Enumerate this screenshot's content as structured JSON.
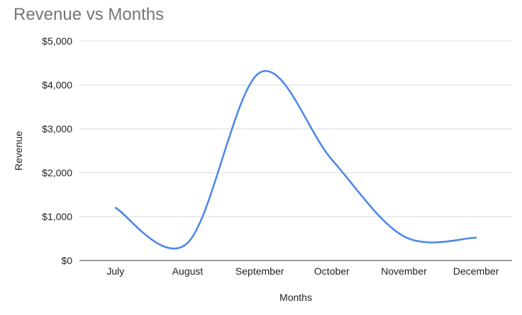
{
  "chart_data": {
    "type": "line",
    "title": "Revenue vs Months",
    "xlabel": "Months",
    "ylabel": "Revenue",
    "categories": [
      "July",
      "August",
      "September",
      "October",
      "November",
      "December"
    ],
    "series": [
      {
        "values": [
          1200,
          400,
          4280,
          2300,
          550,
          520
        ]
      }
    ],
    "ylim": [
      0,
      5000
    ],
    "yticks": [
      0,
      1000,
      2000,
      3000,
      4000,
      5000
    ],
    "ytick_labels": [
      "$0",
      "$1,000",
      "$2,000",
      "$3,000",
      "$4,000",
      "$5,000"
    ],
    "grid": true,
    "legend": "none",
    "colors": {
      "line": "#4a86e8",
      "grid": "#dadada",
      "axis": "#333333"
    }
  }
}
